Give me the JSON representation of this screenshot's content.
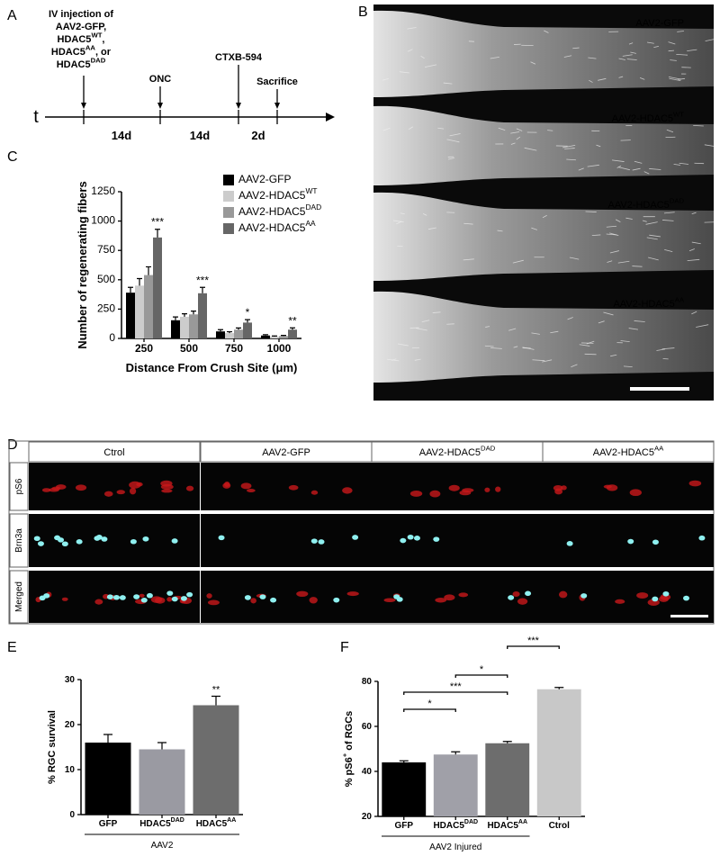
{
  "panel_labels": [
    "A",
    "B",
    "C",
    "D",
    "E",
    "F"
  ],
  "timeline": {
    "axis_label": "t",
    "injection_lines": [
      "IV injection of",
      "AAV2-GFP,",
      "HDAC5WT,",
      "HDAC5AA, or",
      "HDAC5DAD"
    ],
    "events": [
      "ONC",
      "CTXB-594",
      "Sacrifice"
    ],
    "intervals": [
      "14d",
      "14d",
      "2d"
    ]
  },
  "nerve_images": {
    "labels": [
      "AAV2-GFP",
      "AAV2-HDAC5WT",
      "AAV2-HDAC5DAD",
      "AAV2-HDAC5AA"
    ]
  },
  "staining_images": {
    "columns": [
      "Ctrol",
      "AAV2-GFP",
      "AAV2-HDAC5DAD",
      "AAV2-HDAC5AA"
    ],
    "rows": [
      "pS6",
      "Brn3a",
      "Merged"
    ]
  },
  "chart_data": [
    {
      "type": "bar",
      "x_label": "Distance From Crush Site (μm)",
      "y_label": "Number of regenerating fibers",
      "categories": [
        "250",
        "500",
        "750",
        "1000"
      ],
      "series": [
        {
          "name": "AAV2-GFP",
          "color": "#000000",
          "values": [
            390,
            155,
            60,
            25
          ],
          "errors": [
            45,
            28,
            15,
            7
          ]
        },
        {
          "name": "AAV2-HDAC5WT",
          "color": "#cccccc",
          "values": [
            450,
            185,
            45,
            15
          ],
          "errors": [
            60,
            25,
            12,
            6
          ]
        },
        {
          "name": "AAV2-HDAC5DAD",
          "color": "#999999",
          "values": [
            540,
            205,
            75,
            20
          ],
          "errors": [
            70,
            28,
            14,
            6
          ]
        },
        {
          "name": "AAV2-HDAC5AA",
          "color": "#666666",
          "values": [
            860,
            385,
            135,
            75
          ],
          "errors": [
            70,
            50,
            25,
            15
          ]
        }
      ],
      "annotations": [
        "***",
        "***",
        "*",
        "**"
      ],
      "ylim": [
        0,
        1250
      ],
      "yticks": [
        0,
        250,
        500,
        750,
        1000,
        1250
      ]
    },
    {
      "type": "bar",
      "y_label": "% RGC survival",
      "categories": [
        "GFP",
        "HDAC5DAD",
        "HDAC5AA"
      ],
      "values": [
        16,
        14.5,
        24.3
      ],
      "errors": [
        1.8,
        1.5,
        2
      ],
      "colors": [
        "#000000",
        "#9a9aa2",
        "#6d6d6d"
      ],
      "annotations": [
        null,
        null,
        "**"
      ],
      "groups": [
        {
          "label": "AAV2",
          "categories": [
            "GFP",
            "HDAC5DAD",
            "HDAC5AA"
          ]
        }
      ],
      "ylim": [
        0,
        30
      ],
      "yticks": [
        0,
        10,
        20,
        30
      ]
    },
    {
      "type": "bar",
      "y_label": "% pS6+ of RGCs",
      "categories": [
        "GFP",
        "HDAC5DAD",
        "HDAC5AA",
        "Ctrol"
      ],
      "values": [
        44,
        47.5,
        52.5,
        76.5
      ],
      "errors": [
        0.7,
        1.2,
        0.8,
        0.8
      ],
      "colors": [
        "#000000",
        "#a0a0a8",
        "#6d6d6d",
        "#c8c8c8"
      ],
      "comparisons": [
        {
          "between": [
            "GFP",
            "HDAC5DAD"
          ],
          "label": "*"
        },
        {
          "between": [
            "GFP",
            "HDAC5AA"
          ],
          "label": "***"
        },
        {
          "between": [
            "HDAC5DAD",
            "HDAC5AA"
          ],
          "label": "*"
        },
        {
          "between": [
            "HDAC5AA",
            "Ctrol"
          ],
          "label": "***"
        }
      ],
      "groups": [
        {
          "label": "AAV2 Injured",
          "categories": [
            "GFP",
            "HDAC5DAD",
            "HDAC5AA"
          ]
        }
      ],
      "ylim": [
        20,
        80
      ],
      "yticks": [
        20,
        40,
        60,
        80
      ]
    }
  ]
}
